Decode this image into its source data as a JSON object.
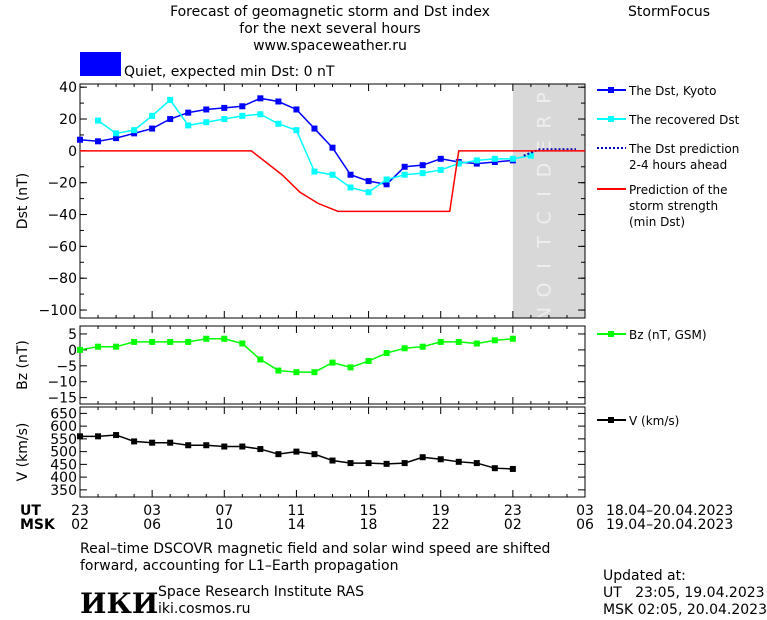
{
  "header": {
    "title_lines": [
      "Forecast of geomagnetic storm and Dst index",
      "for the next several hours",
      "www.spaceweather.ru"
    ],
    "brand": "StormFocus"
  },
  "status": {
    "text": "Quiet, expected min Dst: 0 nT",
    "color": "#0000ff"
  },
  "chart_data": [
    {
      "type": "line",
      "ylabel": "Dst (nT)",
      "ylim": [
        -105,
        42
      ],
      "yticks": [
        40,
        20,
        0,
        -20,
        -40,
        -60,
        -80,
        -100
      ],
      "x_hours_from_23UT": true,
      "prediction_band_label": "PREDICTION",
      "series": [
        {
          "name": "The Dst, Kyoto",
          "color": "#0000ff",
          "marker": "square",
          "x": [
            0,
            1,
            2,
            3,
            4,
            5,
            6,
            7,
            8,
            9,
            10,
            11,
            12,
            13,
            14,
            15,
            16,
            17,
            18,
            19,
            20,
            21,
            22,
            23,
            24
          ],
          "values": [
            7,
            6,
            8,
            11,
            14,
            20,
            24,
            26,
            27,
            28,
            33,
            31,
            26,
            14,
            2,
            -15,
            -19,
            -21,
            -10,
            -9,
            -5,
            -7,
            -8,
            -7,
            -6
          ]
        },
        {
          "name": "The recovered Dst",
          "color": "#00ffff",
          "marker": "square",
          "x": [
            1,
            2,
            3,
            4,
            5,
            6,
            7,
            8,
            9,
            10,
            11,
            12,
            13,
            14,
            15,
            16,
            17,
            18,
            19,
            20,
            21,
            22,
            23,
            24,
            25
          ],
          "values": [
            19,
            11,
            13,
            22,
            32,
            16,
            18,
            20,
            22,
            23,
            17,
            13,
            -13,
            -15,
            -23,
            -26,
            -18,
            -15,
            -14,
            -12,
            -8,
            -6,
            -5,
            -5,
            -3
          ]
        },
        {
          "name": "The Dst prediction",
          "sublabel": "2-4 hours ahead",
          "color": "#0000aa",
          "dashed": true,
          "x": [
            24.6,
            25.5,
            26.5,
            27.5
          ],
          "values": [
            -3,
            1,
            1,
            1
          ]
        },
        {
          "name": "Prediction of the",
          "sublabel_lines": [
            "storm strength",
            "(min Dst)"
          ],
          "color": "#ff0000",
          "step": true,
          "x": [
            0,
            9.5,
            11.2,
            12.2,
            13.2,
            14.3,
            20.5,
            21.0,
            28.0
          ],
          "values": [
            0,
            0,
            -15,
            -26,
            -33,
            -38,
            -38,
            0,
            0
          ]
        }
      ]
    },
    {
      "type": "line",
      "ylabel": "Bz (nT)",
      "ylim": [
        -17,
        7.5
      ],
      "yticks": [
        5,
        0,
        -5,
        -10,
        -15
      ],
      "series": [
        {
          "name": "Bz (nT, GSM)",
          "color": "#00ff00",
          "marker": "square",
          "x": [
            0,
            1,
            2,
            3,
            4,
            5,
            6,
            7,
            8,
            9,
            10,
            11,
            12,
            13,
            14,
            15,
            16,
            17,
            18,
            19,
            20,
            21,
            22,
            23,
            24
          ],
          "values": [
            0,
            1,
            1,
            2.5,
            2.5,
            2.5,
            2.5,
            3.5,
            3.5,
            2,
            -3,
            -6.5,
            -7,
            -7,
            -4,
            -5.5,
            -3.5,
            -1,
            0.5,
            1,
            2.5,
            2.5,
            2,
            3,
            3.5
          ]
        }
      ]
    },
    {
      "type": "line",
      "ylabel": "V (km/s)",
      "ylim": [
        322,
        675
      ],
      "yticks": [
        650,
        600,
        550,
        500,
        450,
        400,
        350
      ],
      "series": [
        {
          "name": "V (km/s)",
          "color": "#000000",
          "marker": "square",
          "x": [
            0,
            1,
            2,
            3,
            4,
            5,
            6,
            7,
            8,
            9,
            10,
            11,
            12,
            13,
            14,
            15,
            16,
            17,
            18,
            19,
            20,
            21,
            22,
            23,
            24
          ],
          "values": [
            560,
            560,
            565,
            540,
            535,
            535,
            525,
            525,
            520,
            520,
            510,
            490,
            500,
            490,
            465,
            455,
            455,
            452,
            455,
            478,
            470,
            460,
            455,
            435,
            432
          ]
        }
      ]
    }
  ],
  "axis": {
    "ut_label": "UT",
    "msk_label": "MSK",
    "ut_ticks": [
      "23",
      "03",
      "07",
      "11",
      "15",
      "19",
      "23",
      "03"
    ],
    "msk_ticks": [
      "02",
      "06",
      "10",
      "14",
      "18",
      "22",
      "02",
      "06"
    ],
    "ut_range": "18.04–20.04.2023",
    "msk_range": "19.04–20.04.2023"
  },
  "footer": {
    "note_lines": [
      "Real–time DSCOVR magnetic field and solar wind speed are shifted",
      "forward, accounting for L1–Earth propagation"
    ],
    "logo_text": "ИКИ",
    "institute": "Space Research Institute RAS",
    "site": "iki.cosmos.ru",
    "updated_label": "Updated at:",
    "updated_ut": "UT   23:05, 19.04.2023",
    "updated_msk": "MSK 02:05, 20.04.2023"
  }
}
